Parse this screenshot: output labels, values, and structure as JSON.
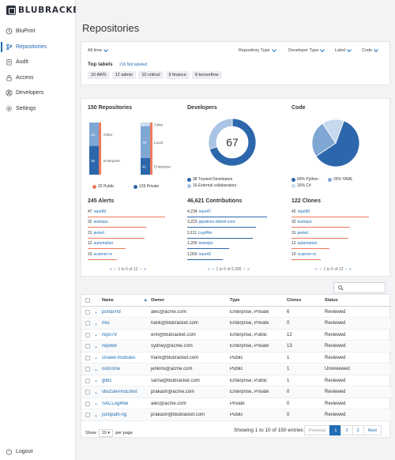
{
  "app": {
    "logo_text": "BLUBRACKET"
  },
  "sidebar": {
    "items": [
      {
        "label": "BluPrint",
        "icon": "bluprint-icon"
      },
      {
        "label": "Repositories",
        "icon": "repositories-icon"
      },
      {
        "label": "Audit",
        "icon": "audit-icon"
      },
      {
        "label": "Access",
        "icon": "access-icon"
      },
      {
        "label": "Developers",
        "icon": "developers-icon"
      },
      {
        "label": "Settings",
        "icon": "settings-icon"
      }
    ],
    "active_index": 1,
    "logout_label": "Logout"
  },
  "page": {
    "title": "Repositories"
  },
  "filters": {
    "time": "All time",
    "repository_type": "Repository Type",
    "developer_type": "Developer Type",
    "label": "Label",
    "code": "Code"
  },
  "top_labels": {
    "title": "Top labels",
    "not_labeled": "216 Not labeled",
    "tags": [
      "16 AWS",
      "12 admin",
      "10 critical",
      "9 finance",
      "8 tensorflow"
    ]
  },
  "repos_summary": {
    "title": "150 Repositories",
    "bar1": {
      "top_value": "13",
      "top_label": "Other",
      "bottom_value": "16",
      "bottom_label": "Enterprise",
      "top": 13,
      "bottom": 16
    },
    "bar2": {
      "top_value": "9",
      "top_label": "Other",
      "middle_value": "79",
      "middle_label": "Local",
      "bottom_value": "41",
      "bottom_label": "Enterprise",
      "top": 9,
      "middle": 79,
      "bottom": 41
    },
    "legend": [
      {
        "label": "32 Public",
        "color": "#f07a5a"
      },
      {
        "label": "129 Private",
        "color": "#2d67ab"
      }
    ]
  },
  "developers_summary": {
    "title": "Developers",
    "center_value": "67",
    "trusted": 38,
    "external": 16,
    "legend": [
      {
        "label": "38 Trusted Developers",
        "color": "#2d67ab"
      },
      {
        "label": "16 External collaborators",
        "color": "#a9c4e4"
      }
    ]
  },
  "code_summary": {
    "title": "Code",
    "legend": [
      {
        "label": "60% Python",
        "color": "#2d67ab",
        "value": 60
      },
      {
        "label": "25% YAML",
        "color": "#7fa7d4",
        "value": 25
      },
      {
        "label": "15% C#",
        "color": "#c7d9ee",
        "value": 15
      }
    ]
  },
  "alerts": {
    "title": "245 Alerts",
    "items": [
      {
        "num": "47",
        "name": "repo89",
        "fill": 0.92
      },
      {
        "num": "32",
        "name": "testrepo",
        "fill": 0.7
      },
      {
        "num": "31",
        "name": "jeeled",
        "fill": 0.68
      },
      {
        "num": "12",
        "name": "automation",
        "fill": 0.45
      },
      {
        "num": "10",
        "name": "scanner-rs",
        "fill": 0.35
      }
    ],
    "pager": "1 to 5 of 12"
  },
  "contributions": {
    "title": "46,621 Contributions",
    "items": [
      {
        "num": "4,234",
        "name": "repo47",
        "fill": 0.95
      },
      {
        "num": "3,223",
        "name": "pipelines-distrel-core",
        "fill": 0.82
      },
      {
        "num": "3,111",
        "name": "Log4Ne",
        "fill": 0.78
      },
      {
        "num": "1,200",
        "name": "testrepo",
        "fill": 0.5
      },
      {
        "num": "1,000",
        "name": "repo43",
        "fill": 0.42
      }
    ],
    "pager": "1 to 5 of 5,300"
  },
  "clones": {
    "title": "122 Clones",
    "items": [
      {
        "num": "42",
        "name": "repo89",
        "fill": 0.92
      },
      {
        "num": "32",
        "name": "testrepo",
        "fill": 0.7
      },
      {
        "num": "31",
        "name": "jeeled",
        "fill": 0.68
      },
      {
        "num": "12",
        "name": "automation",
        "fill": 0.45
      },
      {
        "num": "10",
        "name": "scanner-rs",
        "fill": 0.35
      }
    ],
    "pager": "1 to 5 of 12"
  },
  "table": {
    "search_placeholder": "",
    "columns": {
      "name": "Name",
      "owner": "Owner",
      "type": "Type",
      "clones": "Clones",
      "status": "Status"
    },
    "rows": [
      {
        "name": "portal-hd",
        "owner": "alec@acme.com",
        "type": "Enterprise, Private",
        "clones": "6",
        "status": "Reviewed"
      },
      {
        "name": "mio",
        "owner": "hank@blubracket.com",
        "type": "Enterprise, Private",
        "clones": "0",
        "status": "Reviewed"
      },
      {
        "name": "repo79",
        "owner": "erin@blubracket.com",
        "type": "Enterprise, Public",
        "clones": "12",
        "status": "Reviewed"
      },
      {
        "name": "repo68",
        "owner": "sydney@acme.com",
        "type": "Enterprise, Private",
        "clones": "13",
        "status": "Reviewed"
      },
      {
        "name": "cmake-modules",
        "owner": "frank@blubracket.com",
        "type": "Public",
        "clones": "1",
        "status": "Reviewed"
      },
      {
        "name": "outcome",
        "owner": "jenkins@acme.com",
        "type": "Public",
        "clones": "1",
        "status": "Unreviewed"
      },
      {
        "name": "glibc",
        "owner": "sarna@blubracket.com",
        "type": "Enterprise, Public",
        "clones": "1",
        "status": "Reviewed"
      },
      {
        "name": "vbuzuev%5Etest",
        "owner": "prakash@acme.com",
        "type": "Enterprise, Private",
        "clones": "0",
        "status": "Reviewed"
      },
      {
        "name": "SACLog4Ne",
        "owner": "alec@acme.com",
        "type": "Private",
        "clones": "0",
        "status": "Reviewed"
      },
      {
        "name": "jsonpath-ng",
        "owner": "prakash@blubracket.com",
        "type": "Public",
        "clones": "0",
        "status": "Reviewed"
      }
    ],
    "show_label": "Show",
    "page_size": "10",
    "per_page_label": "per page",
    "info": "Showing 1 to 10 of 150 entries",
    "pages": {
      "previous": "Previous",
      "p1": "1",
      "p2": "2",
      "p3": "3",
      "next": "Next"
    }
  }
}
